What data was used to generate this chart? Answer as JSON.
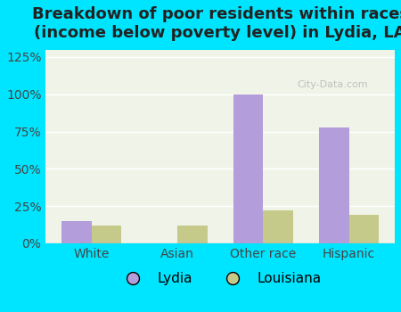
{
  "title": "Breakdown of poor residents within races\n(income below poverty level) in Lydia, LA",
  "categories": [
    "White",
    "Asian",
    "Other race",
    "Hispanic"
  ],
  "lydia_values": [
    15,
    0,
    100,
    78
  ],
  "louisiana_values": [
    12,
    12,
    22,
    19
  ],
  "lydia_color": "#b39ddb",
  "louisiana_color": "#c5c98a",
  "bg_color_outer": "#00e5ff",
  "bg_color_inner": "#f0f4e8",
  "ylim": [
    0,
    130
  ],
  "yticks": [
    0,
    25,
    50,
    75,
    100,
    125
  ],
  "ytick_labels": [
    "0%",
    "25%",
    "50%",
    "75%",
    "100%",
    "125%"
  ],
  "bar_width": 0.35,
  "legend_labels": [
    "Lydia",
    "Louisiana"
  ],
  "title_fontsize": 13,
  "tick_fontsize": 10,
  "legend_fontsize": 11
}
